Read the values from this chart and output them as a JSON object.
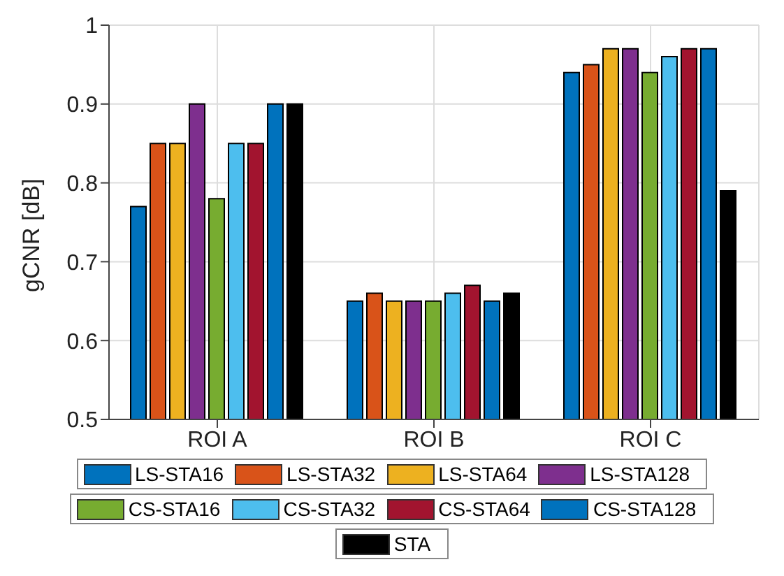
{
  "chart_data": {
    "type": "bar",
    "ylabel": "gCNR [dB]",
    "categories": [
      "ROI A",
      "ROI B",
      "ROI C"
    ],
    "series": [
      {
        "name": "LS-STA16",
        "color": "#0072bd",
        "values": [
          0.77,
          0.65,
          0.94
        ]
      },
      {
        "name": "LS-STA32",
        "color": "#d95319",
        "values": [
          0.85,
          0.66,
          0.95
        ]
      },
      {
        "name": "LS-STA64",
        "color": "#edb120",
        "values": [
          0.85,
          0.65,
          0.97
        ]
      },
      {
        "name": "LS-STA128",
        "color": "#7e2f8e",
        "values": [
          0.9,
          0.65,
          0.97
        ]
      },
      {
        "name": "CS-STA16",
        "color": "#77ac30",
        "values": [
          0.78,
          0.65,
          0.94
        ]
      },
      {
        "name": "CS-STA32",
        "color": "#4dbeee",
        "values": [
          0.85,
          0.66,
          0.96
        ]
      },
      {
        "name": "CS-STA64",
        "color": "#a2142f",
        "values": [
          0.85,
          0.67,
          0.97
        ]
      },
      {
        "name": "CS-STA128",
        "color": "#0072bd",
        "values": [
          0.9,
          0.65,
          0.97
        ]
      },
      {
        "name": "STA",
        "color": "#000000",
        "values": [
          0.9,
          0.66,
          0.79
        ]
      }
    ],
    "ylim": [
      0.5,
      1
    ],
    "yticks": [
      0.5,
      0.6,
      0.7,
      0.8,
      0.9,
      1
    ],
    "grid": true,
    "legend": "bottom"
  }
}
